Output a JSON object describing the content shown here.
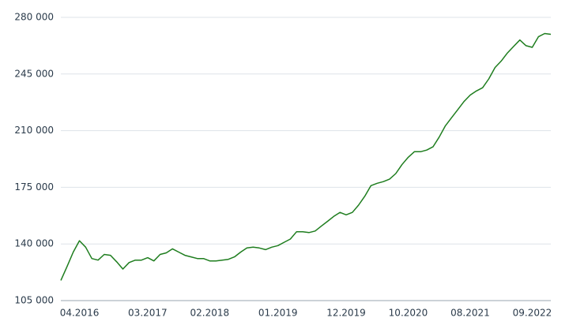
{
  "chart_data": {
    "type": "line",
    "categories": [
      null,
      null,
      null,
      "04.2016",
      null,
      null,
      null,
      null,
      null,
      null,
      null,
      null,
      null,
      null,
      "03.2017",
      null,
      null,
      null,
      null,
      null,
      null,
      null,
      null,
      null,
      "02.2018",
      null,
      null,
      null,
      null,
      null,
      null,
      null,
      null,
      null,
      null,
      "01.2019",
      null,
      null,
      null,
      null,
      null,
      null,
      null,
      null,
      null,
      null,
      "12.2019",
      null,
      null,
      null,
      null,
      null,
      null,
      null,
      null,
      null,
      "10.2020",
      null,
      null,
      null,
      null,
      null,
      null,
      null,
      null,
      null,
      "08.2021",
      null,
      null,
      null,
      null,
      null,
      null,
      null,
      null,
      null,
      "09.2022",
      null,
      null,
      null
    ],
    "series": [
      {
        "color": "#1e7d1e",
        "values": [
          117500,
          126000,
          135000,
          142000,
          138000,
          131000,
          130000,
          133500,
          133000,
          129000,
          124500,
          128500,
          130000,
          130000,
          131500,
          129500,
          133500,
          134500,
          137000,
          135000,
          133000,
          132000,
          131000,
          131000,
          129500,
          129500,
          130000,
          130500,
          132000,
          135000,
          137500,
          138000,
          137500,
          136500,
          138000,
          139000,
          141000,
          143000,
          147500,
          147500,
          147000,
          148000,
          151000,
          154000,
          157000,
          159500,
          158000,
          159500,
          164000,
          169500,
          176000,
          177500,
          178500,
          180000,
          183500,
          189000,
          193500,
          197000,
          197000,
          198000,
          200000,
          206000,
          213000,
          218000,
          223000,
          228000,
          232000,
          234500,
          236500,
          242000,
          249000,
          253000,
          258000,
          262000,
          266000,
          262500,
          261500,
          268000,
          270000,
          269500
        ]
      }
    ],
    "ylim": [
      105000,
      280000
    ],
    "yticks": [
      {
        "value": 105000,
        "label": "105 000"
      },
      {
        "value": 140000,
        "label": "140 000"
      },
      {
        "value": 175000,
        "label": "175 000"
      },
      {
        "value": 210000,
        "label": "210 000"
      },
      {
        "value": 245000,
        "label": "245 000"
      },
      {
        "value": 280000,
        "label": "280 000"
      }
    ],
    "grid": true
  }
}
